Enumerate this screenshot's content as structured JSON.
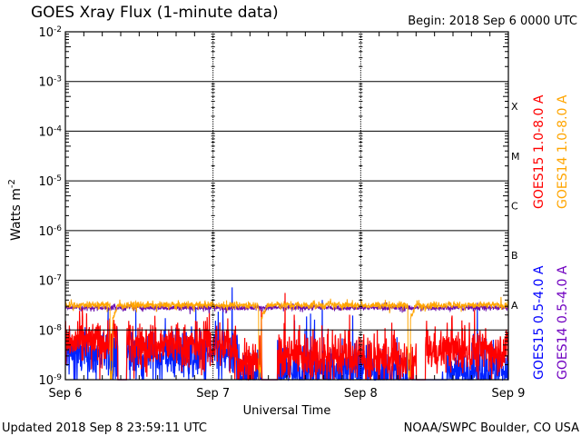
{
  "header": {
    "title": "GOES Xray Flux (1-minute data)",
    "begin": "Begin:  2018 Sep 6 0000 UTC"
  },
  "footer": {
    "updated": "Updated 2018 Sep  8 23:59:11 UTC",
    "credit": "NOAA/SWPC Boulder, CO USA"
  },
  "chart_data": {
    "type": "line",
    "title": "GOES Xray Flux (1-minute data)",
    "xlabel": "Universal Time",
    "ylabel": "Watts m",
    "ylabel_sup": "-2",
    "xlim_hours": [
      0,
      72
    ],
    "ylim_log10": [
      -9,
      -2
    ],
    "x_ticks": [
      {
        "hour": 0,
        "label": "Sep 6"
      },
      {
        "hour": 24,
        "label": "Sep 7"
      },
      {
        "hour": 48,
        "label": "Sep 8"
      },
      {
        "hour": 72,
        "label": "Sep 9"
      }
    ],
    "y_ticks": [
      {
        "exp": -2,
        "label": "-2"
      },
      {
        "exp": -3,
        "label": "-3"
      },
      {
        "exp": -4,
        "label": "-4"
      },
      {
        "exp": -5,
        "label": "-5"
      },
      {
        "exp": -6,
        "label": "-6"
      },
      {
        "exp": -7,
        "label": "-7"
      },
      {
        "exp": -8,
        "label": "-8"
      },
      {
        "exp": -9,
        "label": "-9"
      }
    ],
    "y_tick_base": "10",
    "flare_classes": [
      {
        "label": "X",
        "exp": -4
      },
      {
        "label": "M",
        "exp": -5
      },
      {
        "label": "C",
        "exp": -6
      },
      {
        "label": "B",
        "exp": -7
      },
      {
        "label": "A",
        "exp": -8
      }
    ],
    "legend_right": [
      {
        "name": "GOES15 1.0-8.0 A",
        "color": "#ff0000"
      },
      {
        "name": "GOES14 1.0-8.0 A",
        "color": "#ffa500"
      },
      {
        "name": "GOES15 0.5-4.0 A",
        "color": "#0000ff"
      },
      {
        "name": "GOES14 0.5-4.0 A",
        "color": "#7000c0"
      }
    ],
    "series": [
      {
        "name": "GOES15 0.5-4.0 A",
        "color": "#0022ff",
        "segments_log10": [
          [
            0,
            7,
            -8.5,
            0.35
          ],
          [
            7,
            8.5,
            -8.4,
            0.4
          ],
          [
            8.5,
            10,
            -9.4,
            0.2
          ],
          [
            10,
            22,
            -8.5,
            0.35
          ],
          [
            22,
            28,
            -8.5,
            0.4
          ],
          [
            28,
            32,
            -8.9,
            0.35
          ],
          [
            32,
            34.5,
            -9.4,
            0.2
          ],
          [
            34.5,
            48,
            -8.8,
            0.4
          ],
          [
            48,
            54,
            -8.9,
            0.4
          ],
          [
            54,
            57,
            -9.0,
            0.3
          ],
          [
            57,
            62,
            -9.4,
            0.2
          ],
          [
            62,
            72,
            -8.8,
            0.35
          ]
        ]
      },
      {
        "name": "GOES15 1.0-8.0 A",
        "color": "#ff0000",
        "segments_log10": [
          [
            0,
            7,
            -8.25,
            0.3
          ],
          [
            7,
            8.5,
            -8.15,
            0.35
          ],
          [
            8.5,
            10,
            -9.4,
            0.2
          ],
          [
            10,
            22,
            -8.3,
            0.3
          ],
          [
            22,
            28,
            -8.3,
            0.35
          ],
          [
            28,
            32,
            -8.65,
            0.35
          ],
          [
            32,
            34.5,
            -9.4,
            0.2
          ],
          [
            34.5,
            48,
            -8.5,
            0.35
          ],
          [
            48,
            54,
            -8.6,
            0.35
          ],
          [
            54,
            57,
            -8.7,
            0.35
          ],
          [
            57,
            58.5,
            -9.4,
            0.2
          ],
          [
            58.5,
            72,
            -8.4,
            0.3
          ]
        ]
      },
      {
        "name": "GOES14 0.5-4.0 A",
        "color": "#6a0dad",
        "segments_log10": [
          [
            0,
            72,
            -7.55,
            0.04
          ]
        ]
      },
      {
        "name": "GOES14 1.0-8.0 A",
        "color": "#ffa500",
        "segments_log10": [
          [
            0,
            72,
            -7.5,
            0.05
          ]
        ],
        "dips_hour": [
          7.4,
          31.6,
          55.8
        ]
      }
    ],
    "grid": "horizontal at each decade"
  }
}
